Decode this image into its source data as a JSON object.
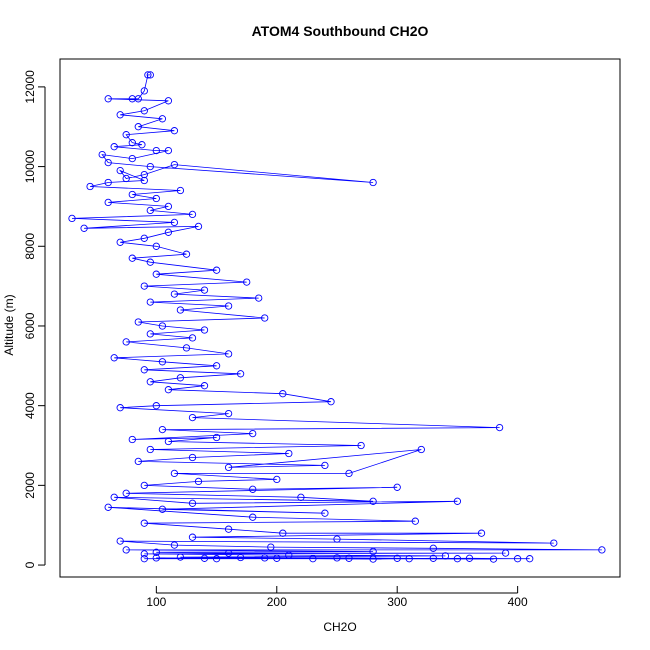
{
  "chart_data": {
    "type": "scatter",
    "title": "ATOM4 Southbound CH2O",
    "xlabel": "CH2O",
    "ylabel": "Altitude (m)",
    "xlim": [
      20,
      485
    ],
    "ylim": [
      -300,
      12700
    ],
    "xticks": [
      100,
      200,
      300,
      400
    ],
    "yticks": [
      0,
      2000,
      4000,
      6000,
      8000,
      10000,
      12000
    ],
    "grid": false,
    "marker": "open-circle",
    "connected": true,
    "color": "#0000ff",
    "series": [
      {
        "values": [
          [
            95,
            12300
          ],
          [
            93,
            12300
          ],
          [
            90,
            11900
          ],
          [
            85,
            11700
          ],
          [
            80,
            11700
          ],
          [
            60,
            11700
          ],
          [
            110,
            11650
          ],
          [
            90,
            11400
          ],
          [
            70,
            11300
          ],
          [
            105,
            11200
          ],
          [
            85,
            11000
          ],
          [
            115,
            10900
          ],
          [
            75,
            10800
          ],
          [
            80,
            10600
          ],
          [
            88,
            10550
          ],
          [
            65,
            10500
          ],
          [
            100,
            10400
          ],
          [
            110,
            10400
          ],
          [
            80,
            10200
          ],
          [
            55,
            10300
          ],
          [
            60,
            10100
          ],
          [
            95,
            10000
          ],
          [
            280,
            9600
          ],
          [
            115,
            10050
          ],
          [
            90,
            9800
          ],
          [
            75,
            9700
          ],
          [
            70,
            9900
          ],
          [
            90,
            9650
          ],
          [
            60,
            9600
          ],
          [
            45,
            9500
          ],
          [
            120,
            9400
          ],
          [
            80,
            9300
          ],
          [
            100,
            9200
          ],
          [
            60,
            9100
          ],
          [
            110,
            9000
          ],
          [
            95,
            8900
          ],
          [
            130,
            8800
          ],
          [
            30,
            8700
          ],
          [
            115,
            8600
          ],
          [
            40,
            8450
          ],
          [
            135,
            8500
          ],
          [
            110,
            8350
          ],
          [
            90,
            8200
          ],
          [
            70,
            8100
          ],
          [
            100,
            8000
          ],
          [
            125,
            7800
          ],
          [
            80,
            7700
          ],
          [
            95,
            7600
          ],
          [
            150,
            7400
          ],
          [
            100,
            7300
          ],
          [
            175,
            7100
          ],
          [
            90,
            7000
          ],
          [
            140,
            6900
          ],
          [
            115,
            6800
          ],
          [
            185,
            6700
          ],
          [
            95,
            6600
          ],
          [
            160,
            6500
          ],
          [
            120,
            6400
          ],
          [
            190,
            6200
          ],
          [
            85,
            6100
          ],
          [
            105,
            6000
          ],
          [
            140,
            5900
          ],
          [
            95,
            5800
          ],
          [
            130,
            5700
          ],
          [
            75,
            5600
          ],
          [
            125,
            5450
          ],
          [
            160,
            5300
          ],
          [
            65,
            5200
          ],
          [
            105,
            5100
          ],
          [
            150,
            5000
          ],
          [
            90,
            4900
          ],
          [
            170,
            4800
          ],
          [
            120,
            4700
          ],
          [
            95,
            4600
          ],
          [
            140,
            4500
          ],
          [
            110,
            4400
          ],
          [
            205,
            4300
          ],
          [
            245,
            4100
          ],
          [
            100,
            4000
          ],
          [
            70,
            3950
          ],
          [
            160,
            3800
          ],
          [
            130,
            3700
          ],
          [
            385,
            3450
          ],
          [
            105,
            3400
          ],
          [
            180,
            3300
          ],
          [
            80,
            3150
          ],
          [
            150,
            3200
          ],
          [
            110,
            3100
          ],
          [
            270,
            3000
          ],
          [
            95,
            2900
          ],
          [
            210,
            2800
          ],
          [
            130,
            2700
          ],
          [
            85,
            2600
          ],
          [
            240,
            2500
          ],
          [
            160,
            2450
          ],
          [
            320,
            2900
          ],
          [
            260,
            2300
          ],
          [
            115,
            2300
          ],
          [
            200,
            2150
          ],
          [
            135,
            2100
          ],
          [
            90,
            2000
          ],
          [
            180,
            1900
          ],
          [
            300,
            1950
          ],
          [
            75,
            1800
          ],
          [
            220,
            1700
          ],
          [
            280,
            1600
          ],
          [
            65,
            1700
          ],
          [
            130,
            1550
          ],
          [
            350,
            1600
          ],
          [
            105,
            1400
          ],
          [
            240,
            1300
          ],
          [
            60,
            1450
          ],
          [
            180,
            1200
          ],
          [
            315,
            1100
          ],
          [
            90,
            1050
          ],
          [
            160,
            900
          ],
          [
            205,
            800
          ],
          [
            370,
            800
          ],
          [
            130,
            700
          ],
          [
            250,
            650
          ],
          [
            430,
            550
          ],
          [
            70,
            600
          ],
          [
            115,
            500
          ],
          [
            195,
            450
          ],
          [
            330,
            420
          ],
          [
            470,
            380
          ],
          [
            75,
            380
          ],
          [
            280,
            340
          ],
          [
            100,
            320
          ],
          [
            160,
            300
          ],
          [
            390,
            300
          ],
          [
            90,
            280
          ],
          [
            210,
            250
          ],
          [
            340,
            230
          ],
          [
            120,
            200
          ],
          [
            170,
            190
          ],
          [
            250,
            180
          ],
          [
            300,
            170
          ],
          [
            350,
            160
          ],
          [
            410,
            160
          ],
          [
            90,
            160
          ],
          [
            140,
            170
          ],
          [
            190,
            180
          ],
          [
            230,
            160
          ],
          [
            280,
            150
          ],
          [
            330,
            170
          ],
          [
            380,
            150
          ],
          [
            100,
            180
          ],
          [
            150,
            160
          ],
          [
            200,
            170
          ],
          [
            260,
            170
          ],
          [
            310,
            160
          ],
          [
            360,
            170
          ],
          [
            400,
            160
          ]
        ]
      }
    ]
  }
}
